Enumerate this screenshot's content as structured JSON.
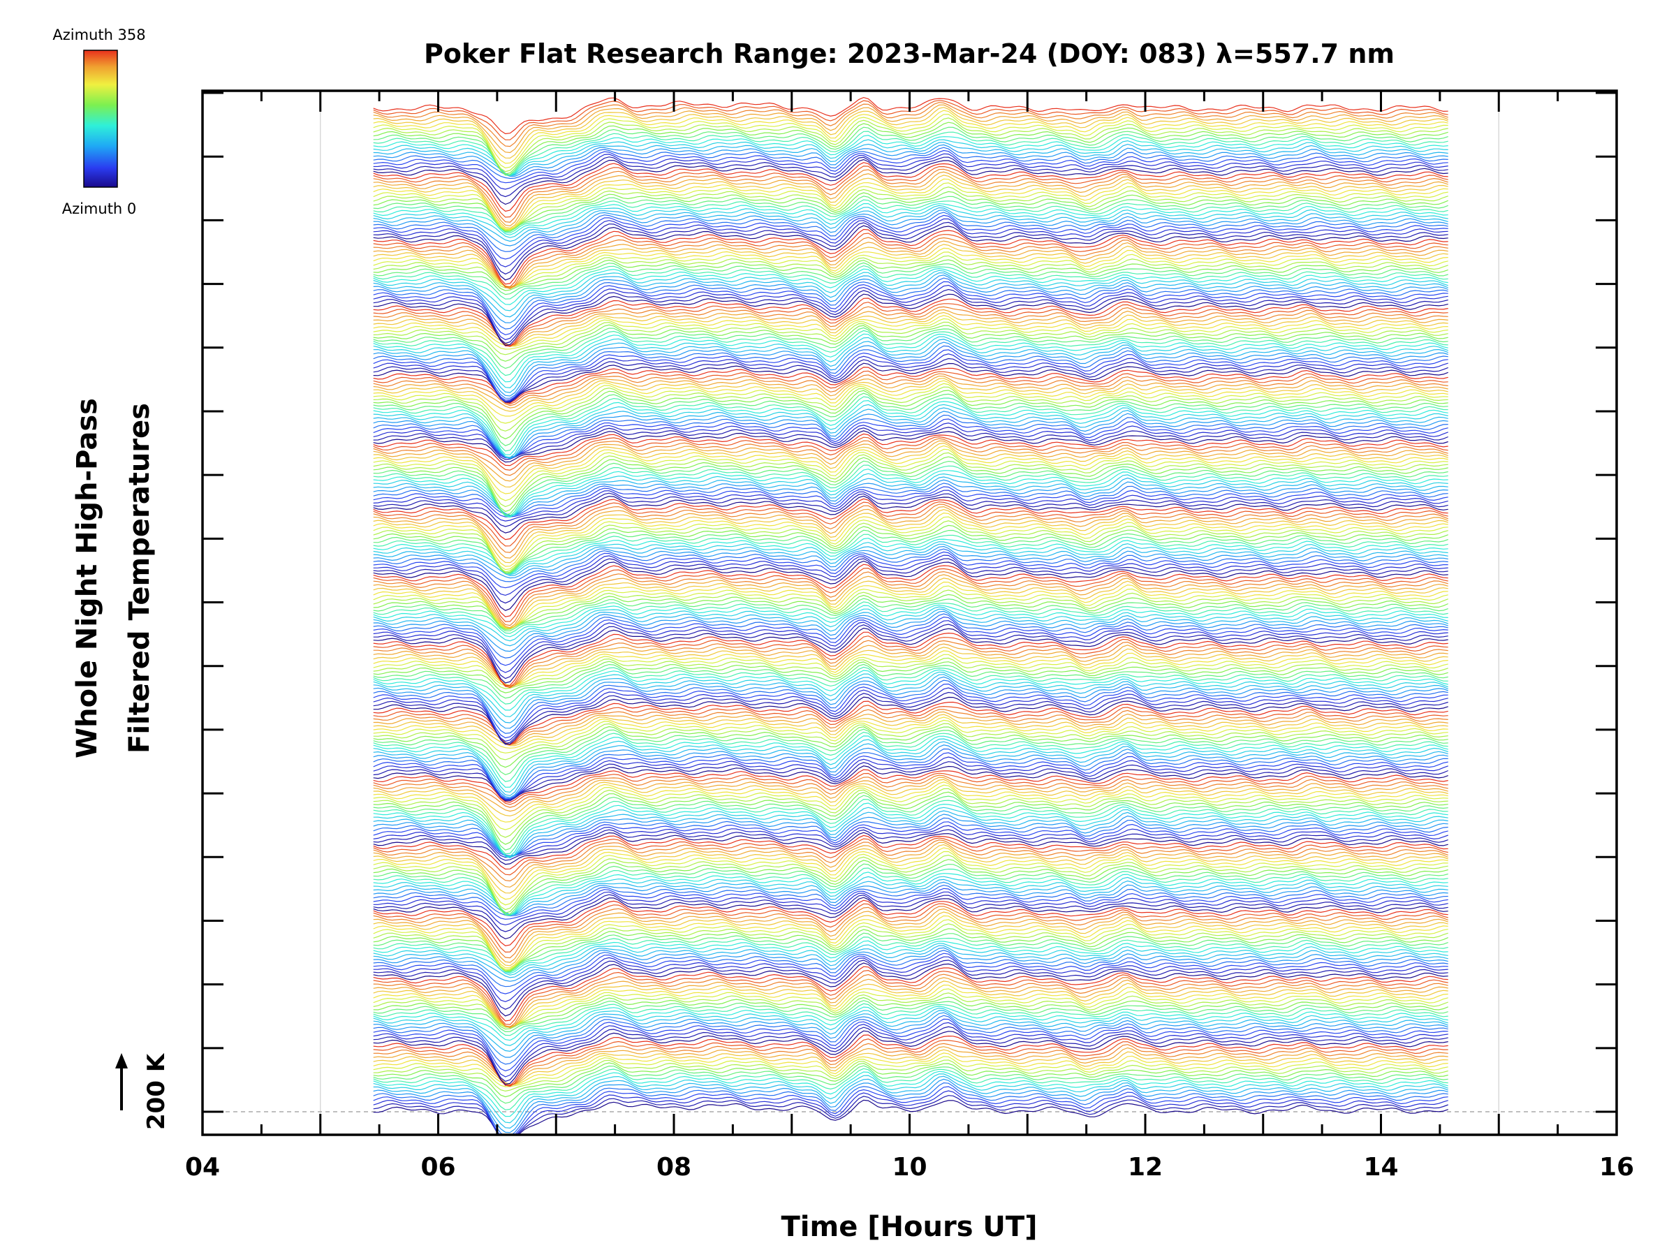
{
  "chart_data": {
    "type": "line",
    "title": "Poker Flat Research Range: 2023-Mar-24 (DOY: 083) λ=557.7 nm",
    "xlabel": "Time [Hours UT]",
    "ylabel_line1": "Whole Night High-Pass",
    "ylabel_line2": "Filtered Temperatures",
    "scale_label": "200 K",
    "xlim": [
      4,
      16
    ],
    "x_ticks": [
      "04",
      "06",
      "08",
      "10",
      "12",
      "14",
      "16"
    ],
    "x_data_range": [
      5.45,
      14.6
    ],
    "y_offset_ticks": 17,
    "grid_x": [
      5,
      15
    ],
    "colorbar": {
      "top_label": "Azimuth 358",
      "bottom_label": "Azimuth 0",
      "colors": [
        "#1a0a8c",
        "#2a3cf0",
        "#1fa9f5",
        "#2ff0d8",
        "#7cf050",
        "#f0f040",
        "#f0a030",
        "#e8301c"
      ]
    },
    "waterfall": {
      "num_traces": 300,
      "traces_per_azimuth_cycle": 20,
      "description_of_series": "Stacked high-pass filtered temperature traces, one per azimuth, offset vertically",
      "common_features": [
        {
          "t": 6.55,
          "amplitude": -1.0
        },
        {
          "t": 7.45,
          "amplitude": 0.45
        },
        {
          "t": 9.35,
          "amplitude": -0.55
        },
        {
          "t": 9.65,
          "amplitude": 0.5
        },
        {
          "t": 10.3,
          "amplitude": 0.6
        },
        {
          "t": 11.5,
          "amplitude": -0.3
        },
        {
          "t": 11.85,
          "amplitude": 0.35
        }
      ]
    }
  }
}
